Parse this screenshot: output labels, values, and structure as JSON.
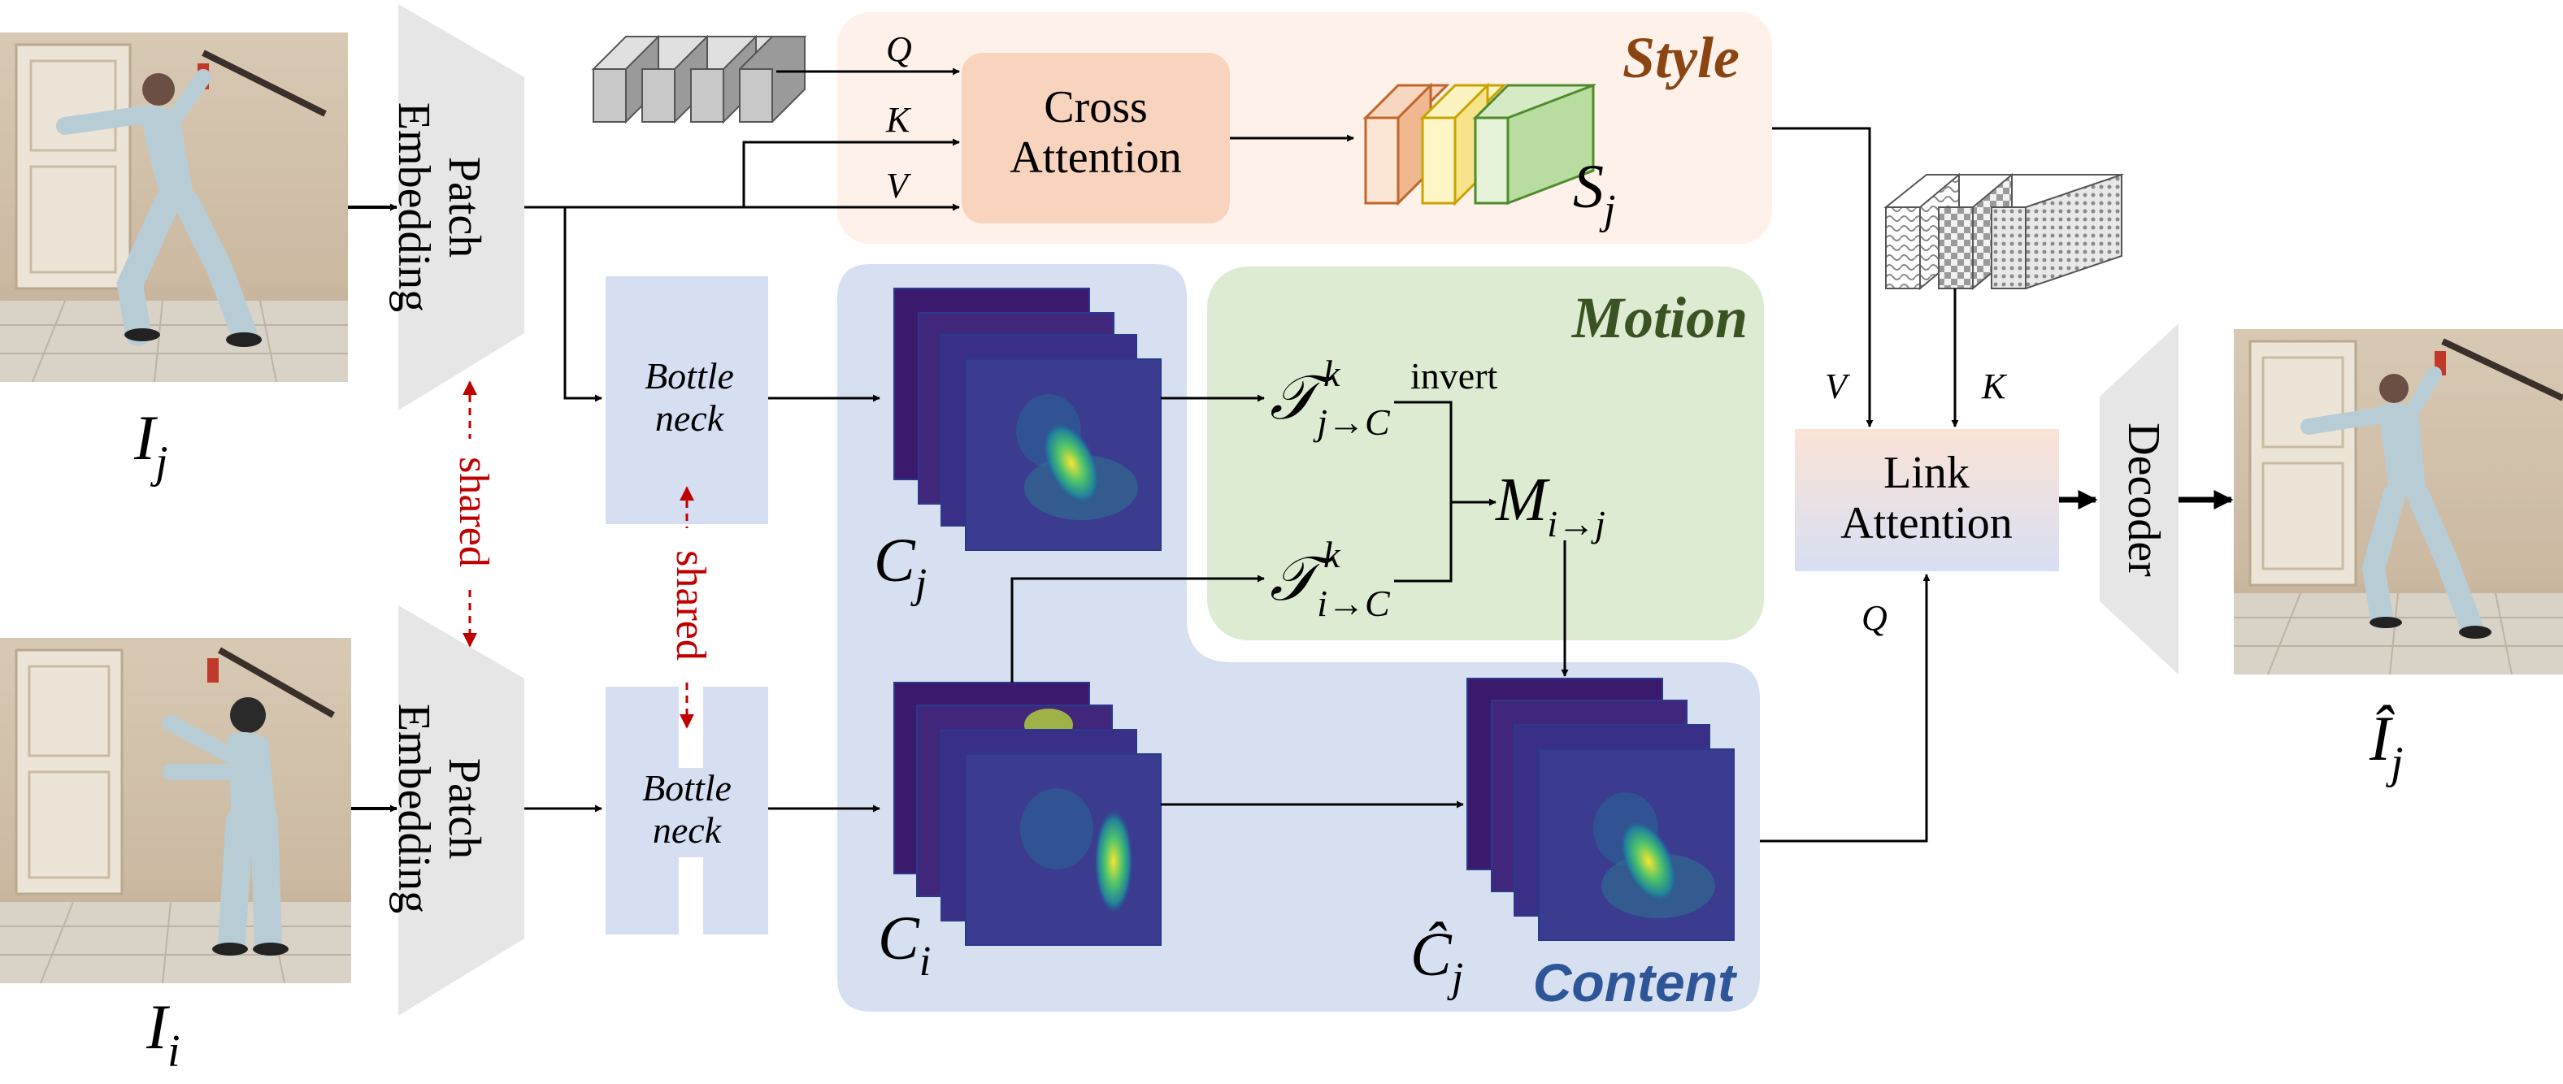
{
  "inputs": {
    "frame_j_label": "I",
    "frame_j_sub": "j",
    "frame_i_label": "I",
    "frame_i_sub": "i",
    "output_label": "Î",
    "output_sub": "j"
  },
  "patch_embedding": {
    "label_line1": "Patch",
    "label_line2": "Embedding"
  },
  "bottleneck": {
    "label_line1": "Bottle",
    "label_line2": "neck"
  },
  "shared_label": "shared",
  "style_panel": {
    "title": "Style",
    "cross_attention_line1": "Cross",
    "cross_attention_line2": "Attention",
    "q": "Q",
    "k": "K",
    "v": "V",
    "style_tokens_label": "S",
    "style_tokens_sub": "j"
  },
  "motion_panel": {
    "title": "Motion",
    "t_j_main": "𝒯",
    "t_j_sub": "j→C",
    "t_j_sup": "k",
    "t_i_main": "𝒯",
    "t_i_sub": "i→C",
    "t_i_sup": "k",
    "invert_label": "invert",
    "m_main": "M",
    "m_sub": "i→j"
  },
  "content_panel": {
    "title": "Content",
    "c_j_main": "C",
    "c_j_sub": "j",
    "c_i_main": "C",
    "c_i_sub": "i",
    "c_hat_main": "Ĉ",
    "c_hat_sub": "j"
  },
  "link_attention": {
    "line1": "Link",
    "line2": "Attention",
    "v": "V",
    "k": "K",
    "q": "Q"
  },
  "decoder": {
    "label": "Decoder"
  },
  "colors": {
    "style_bg": "#fdf1ea",
    "style_title": "#8b4513",
    "cross_attn_fill": "#f8d3bd",
    "motion_bg": "#dcebd2",
    "motion_title": "#3b5323",
    "content_bg": "#d7e0f0",
    "content_title": "#2e5597",
    "bottleneck": "#d6dff2",
    "patch": "#e6e6e6",
    "shared": "#c00000",
    "arrow": "#000000"
  }
}
